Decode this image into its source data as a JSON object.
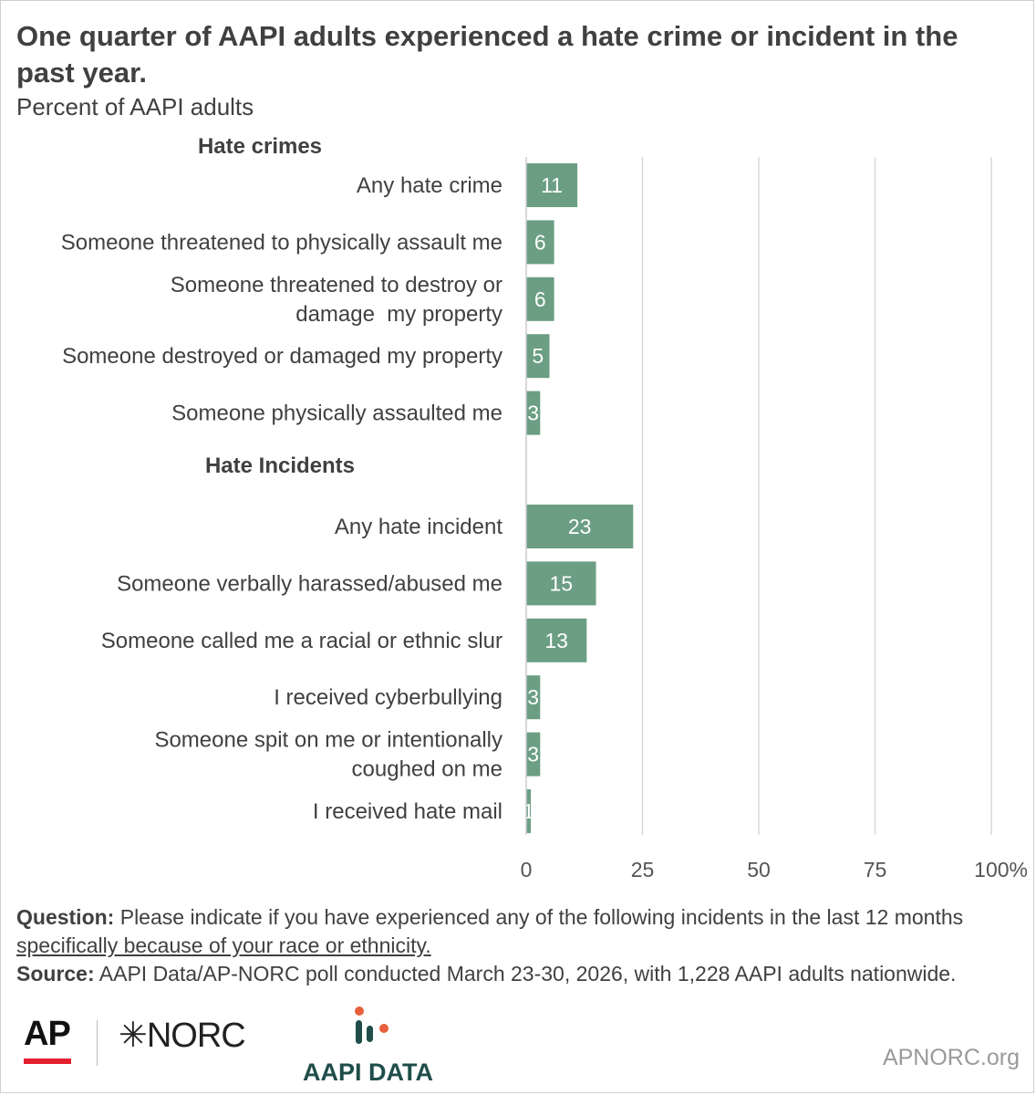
{
  "title": "One quarter of AAPI adults experienced a hate crime or incident in the past year.",
  "subtitle": "Percent of AAPI adults",
  "chart_data": {
    "type": "bar",
    "orientation": "horizontal",
    "groups": [
      {
        "label": "Hate crimes",
        "items": [
          {
            "label": [
              "Any hate crime"
            ],
            "value": 11
          },
          {
            "label": [
              "Someone threatened to physically assault me"
            ],
            "value": 6
          },
          {
            "label": [
              "Someone threatened to destroy or",
              "damage  my property"
            ],
            "value": 6
          },
          {
            "label": [
              "Someone destroyed or damaged my property"
            ],
            "value": 5
          },
          {
            "label": [
              "Someone physically assaulted me"
            ],
            "value": 3
          }
        ]
      },
      {
        "label": "Hate Incidents",
        "items": [
          {
            "label": [
              "Any hate incident"
            ],
            "value": 23
          },
          {
            "label": [
              "Someone verbally harassed/abused me"
            ],
            "value": 15
          },
          {
            "label": [
              "Someone called me a racial or ethnic slur"
            ],
            "value": 13
          },
          {
            "label": [
              "I received cyberbullying"
            ],
            "value": 3
          },
          {
            "label": [
              "Someone spit on me or intentionally",
              "coughed on me"
            ],
            "value": 3
          },
          {
            "label": [
              "I received hate mail"
            ],
            "value": 1
          }
        ]
      }
    ],
    "xlim": [
      0,
      100
    ],
    "xticks": [
      0,
      25,
      50,
      75,
      100
    ],
    "xtick_labels": [
      "0",
      "25",
      "50",
      "75",
      "100%"
    ],
    "grid": true,
    "bar_color": "#6b9e82"
  },
  "notes": {
    "question_label": "Question:",
    "question_text": " Please indicate if you have experienced any of the following incidents in the last 12 months ",
    "question_underlined": "specifically because of your race or ethnicity.",
    "source_label": "Source:",
    "source_text": " AAPI Data/AP-NORC poll conducted March 23-30, 2026, with 1,228 AAPI adults nationwide."
  },
  "logos": {
    "ap": "AP",
    "norc": "NORC",
    "aapi": "AAPI DATA",
    "site": "APNORC.org"
  },
  "colors": {
    "accent_red": "#e4202e",
    "aapi_teal": "#1f4e4a",
    "aapi_orange": "#e8603c"
  }
}
